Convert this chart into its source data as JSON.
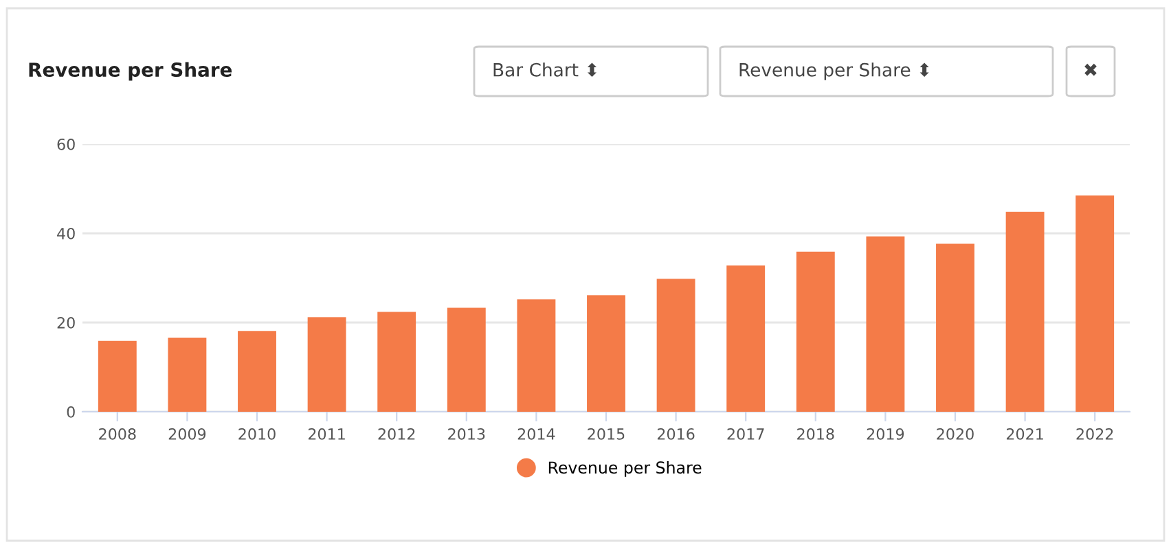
{
  "chart_data": {
    "type": "bar",
    "title": "Revenue per Share",
    "categories": [
      "2008",
      "2009",
      "2010",
      "2011",
      "2012",
      "2013",
      "2014",
      "2015",
      "2016",
      "2017",
      "2018",
      "2019",
      "2020",
      "2021",
      "2022"
    ],
    "series": [
      {
        "name": "Revenue per Share",
        "color": "#f47b48",
        "values": [
          15.9,
          16.6,
          18.1,
          21.2,
          22.4,
          23.3,
          25.2,
          26.1,
          29.8,
          32.8,
          35.9,
          39.3,
          37.7,
          44.8,
          48.5
        ]
      }
    ],
    "ylim": [
      0,
      60
    ],
    "yticks": [
      0,
      20,
      40,
      60
    ],
    "grid": "y",
    "legend": "bottom",
    "annotations": [
      "Bar Chart ⬍",
      "Revenue per Share ⬍",
      "✖"
    ]
  }
}
